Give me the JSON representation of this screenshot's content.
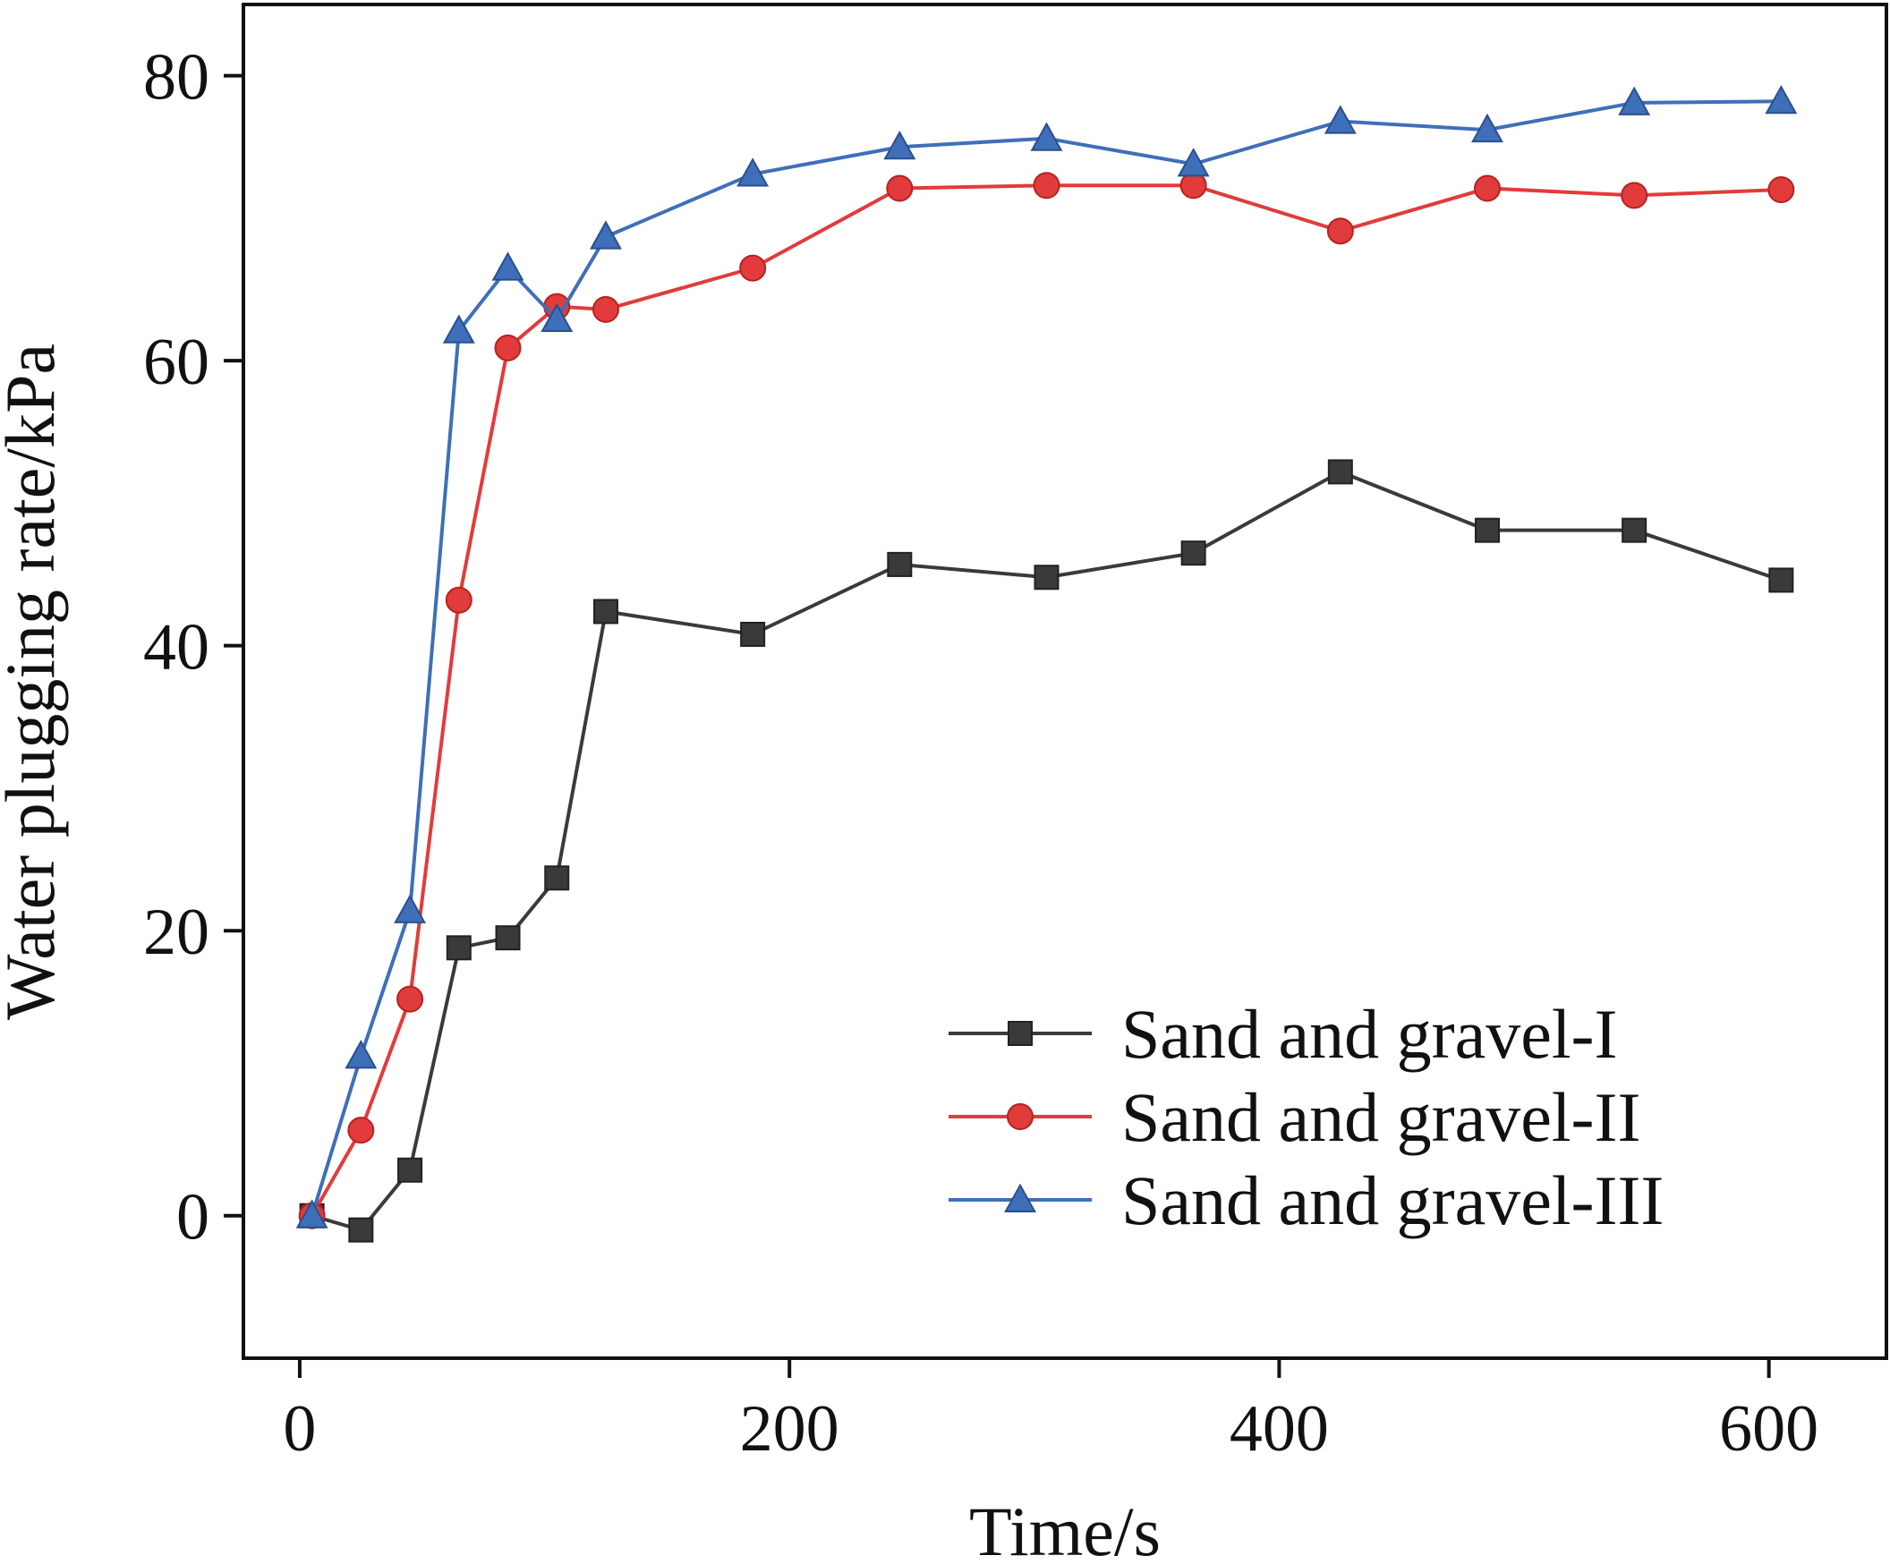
{
  "chart_data": {
    "type": "line",
    "xlabel": "Time/s",
    "ylabel": "Water plugging rate/kPa",
    "xlim": [
      -23,
      648
    ],
    "ylim": [
      -10,
      85
    ],
    "xticks": [
      0,
      200,
      400,
      600
    ],
    "yticks": [
      0,
      20,
      40,
      60,
      80
    ],
    "x_tick_labels": [
      "0",
      "200",
      "400",
      "600"
    ],
    "y_tick_labels": [
      "0",
      "20",
      "40",
      "60",
      "80"
    ],
    "grid": false,
    "legend_position": "bottom-right",
    "series": [
      {
        "name": "Sand and gravel-I",
        "color": "#3a3a3a",
        "marker": "square",
        "x": [
          5,
          25,
          45,
          65,
          85,
          105,
          125,
          185,
          245,
          305,
          365,
          425,
          485,
          545,
          605
        ],
        "y": [
          0,
          -1,
          3.2,
          18.8,
          19.5,
          23.7,
          42.4,
          40.8,
          45.7,
          44.8,
          46.5,
          52.2,
          48.1,
          48.1,
          44.6
        ]
      },
      {
        "name": "Sand and gravel-II",
        "color": "#e23b3b",
        "marker": "circle",
        "x": [
          5,
          25,
          45,
          65,
          85,
          105,
          125,
          185,
          245,
          305,
          365,
          425,
          485,
          545,
          605
        ],
        "y": [
          0,
          6,
          15.2,
          43.2,
          60.9,
          63.8,
          63.6,
          66.5,
          72.1,
          72.3,
          72.3,
          69.1,
          72.1,
          71.6,
          72.0
        ]
      },
      {
        "name": "Sand and gravel-III",
        "color": "#3f6fb8",
        "marker": "triangle",
        "x": [
          5,
          25,
          45,
          65,
          85,
          105,
          125,
          185,
          245,
          305,
          365,
          425,
          485,
          545,
          605
        ],
        "y": [
          0,
          11.2,
          21.4,
          62.1,
          66.5,
          62.9,
          68.7,
          73.1,
          75.0,
          75.6,
          73.8,
          76.8,
          76.2,
          78.1,
          78.2
        ]
      }
    ]
  }
}
